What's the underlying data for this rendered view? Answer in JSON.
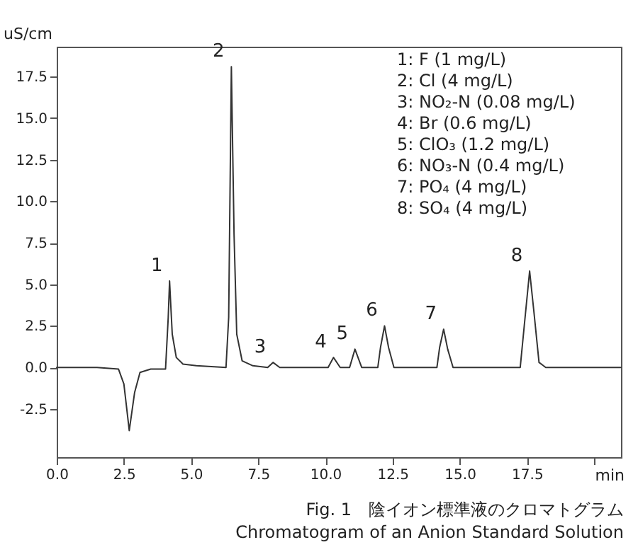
{
  "chart_data": {
    "type": "line",
    "title": "Fig. 1　陰イオン標準液のクロマトグラム",
    "subtitle": "Chromatogram of an Anion Standard Solution",
    "xlabel": "min",
    "ylabel": "uS/cm",
    "x": [
      0,
      1.5,
      2.3,
      2.5,
      2.7,
      2.9,
      3.1,
      3.5,
      4.05,
      4.15,
      4.2,
      4.3,
      4.45,
      4.7,
      5.2,
      6.3,
      6.4,
      6.5,
      6.6,
      6.7,
      6.9,
      7.3,
      7.85,
      8.05,
      8.3,
      10.1,
      10.3,
      10.55,
      10.9,
      11.1,
      11.35,
      11.95,
      12.05,
      12.2,
      12.35,
      12.55,
      14.15,
      14.25,
      14.4,
      14.55,
      14.75,
      17.25,
      17.4,
      17.6,
      17.75,
      17.95,
      18.2,
      21
    ],
    "series": [
      {
        "color": "#333333",
        "values": [
          0,
          0,
          -0.1,
          -1.0,
          -3.8,
          -1.5,
          -0.3,
          -0.1,
          -0.1,
          3.0,
          5.2,
          2.0,
          0.6,
          0.2,
          0.1,
          0,
          3,
          18.1,
          8,
          2,
          0.4,
          0.1,
          0,
          0.3,
          0,
          0,
          0.6,
          0,
          0,
          1.1,
          0,
          0,
          1.2,
          2.5,
          1.2,
          0,
          0,
          1.2,
          2.3,
          1.1,
          0,
          0,
          2.5,
          5.8,
          3.5,
          0.3,
          0,
          0
        ]
      }
    ],
    "xlim": [
      0,
      21
    ],
    "ylim": [
      -5.4,
      19.3
    ],
    "xticks": [
      {
        "value": 0,
        "label": "0.0"
      },
      2.5,
      {
        "value": 5,
        "label": "5.0"
      },
      7.5,
      {
        "value": 10,
        "label": "10.0"
      },
      12.5,
      {
        "value": 15,
        "label": "15.0"
      },
      17.5,
      {
        "value": 20,
        "label": null
      }
    ],
    "yticks": [
      -2.5,
      {
        "value": 0,
        "label": "0.0"
      },
      2.5,
      {
        "value": 5,
        "label": "5.0"
      },
      7.5,
      {
        "value": 10,
        "label": "10.0"
      },
      12.5,
      {
        "value": 15,
        "label": "15.0"
      },
      17.5
    ],
    "grid": false,
    "marker": "none",
    "line_style": "solid",
    "annotations": [
      {
        "text": "1",
        "x": 4.2,
        "y": 5.2
      },
      {
        "text": "2",
        "x": 6.5,
        "y": 18.1
      },
      {
        "text": "3",
        "x": 8.05,
        "y": 0.3
      },
      {
        "text": "4",
        "x": 10.3,
        "y": 0.6
      },
      {
        "text": "5",
        "x": 11.1,
        "y": 1.1
      },
      {
        "text": "6",
        "x": 12.2,
        "y": 2.5
      },
      {
        "text": "7",
        "x": 14.4,
        "y": 2.3
      },
      {
        "text": "8",
        "x": 17.6,
        "y": 5.8
      },
      "1: F          (1 mg/L)",
      "2: Cl         (4 mg/L)",
      "3: NO₂-N (0.08 mg/L)",
      "4: Br        (0.6 mg/L)",
      "5: ClO₃     (1.2 mg/L)",
      "6: NO₃-N (0.4 mg/L)",
      "7: PO₄      (4 mg/L)",
      "8: SO₄      (4 mg/L)"
    ]
  }
}
